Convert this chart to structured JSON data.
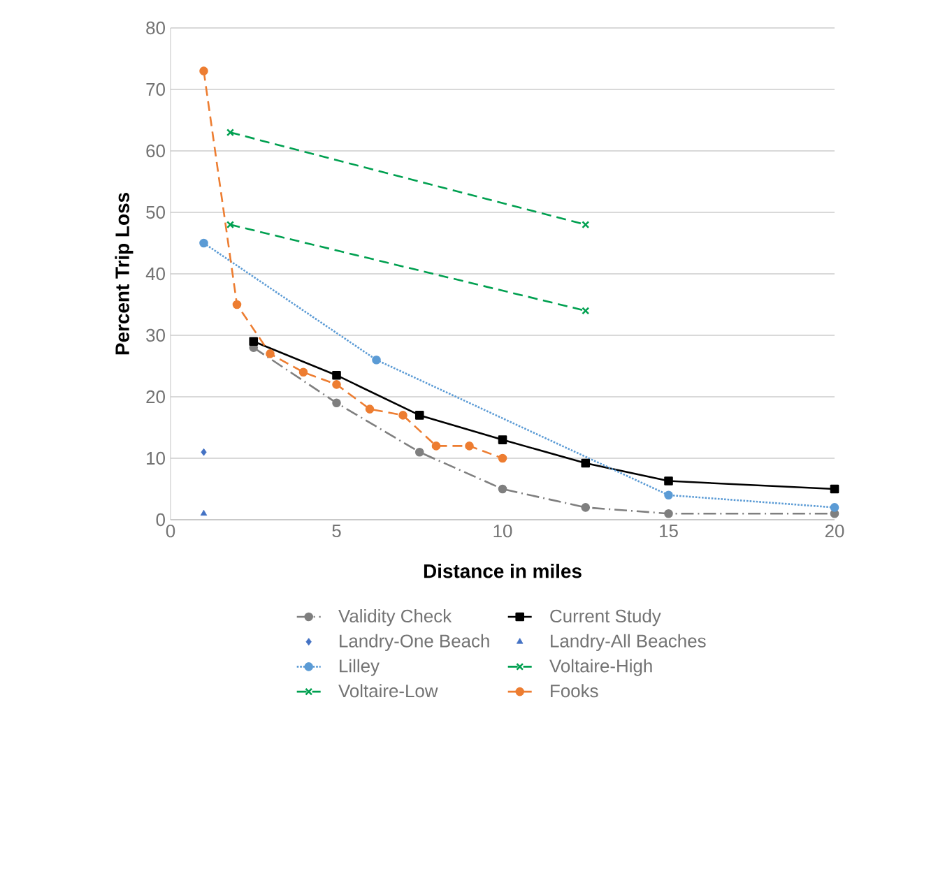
{
  "chart_data": {
    "type": "line",
    "xlabel": "Distance in miles",
    "ylabel": "Percent Trip Loss",
    "xlim": [
      0,
      20
    ],
    "ylim": [
      0,
      80
    ],
    "xticks": [
      0,
      5,
      10,
      15,
      20
    ],
    "yticks": [
      0,
      10,
      20,
      30,
      40,
      50,
      60,
      70,
      80
    ],
    "grid": "y",
    "legend": "bottom",
    "series": [
      {
        "name": "Validity Check",
        "color": "#7f7f7f",
        "marker": "circle",
        "line_style": "dashdot",
        "x": [
          2.5,
          5,
          7.5,
          10,
          12.5,
          15,
          20
        ],
        "values": [
          28,
          19,
          11,
          5,
          2,
          1,
          1
        ]
      },
      {
        "name": "Current Study",
        "color": "#000000",
        "marker": "square",
        "line_style": "solid",
        "x": [
          2.5,
          5,
          7.5,
          10,
          12.5,
          15,
          20
        ],
        "values": [
          29,
          23.5,
          17,
          13,
          9.2,
          6.3,
          5
        ]
      },
      {
        "name": "Landry-One Beach",
        "type": "scatter",
        "color": "#4472c4",
        "marker": "diamond",
        "x": [
          1
        ],
        "values": [
          11
        ]
      },
      {
        "name": "Landry-All Beaches",
        "type": "scatter",
        "color": "#4472c4",
        "marker": "triangle",
        "x": [
          1
        ],
        "values": [
          1
        ]
      },
      {
        "name": "Lilley",
        "color": "#5b9bd5",
        "marker": "circle",
        "line_style": "dotted",
        "x": [
          1,
          6.2,
          15,
          20
        ],
        "values": [
          45,
          26,
          4,
          2
        ]
      },
      {
        "name": "Voltaire-High",
        "color": "#00a050",
        "marker": "cross",
        "line_style": "dashed",
        "x": [
          1.8,
          12.5
        ],
        "values": [
          63,
          48
        ]
      },
      {
        "name": "Voltaire-Low",
        "color": "#00a050",
        "marker": "cross",
        "line_style": "dashed",
        "x": [
          1.8,
          12.5
        ],
        "values": [
          48,
          34
        ]
      },
      {
        "name": "Fooks",
        "color": "#ed7d31",
        "marker": "circle",
        "line_style": "dashed",
        "x": [
          1,
          2,
          3,
          4,
          5,
          6,
          7,
          8,
          9,
          10
        ],
        "values": [
          73,
          35,
          27,
          24,
          22,
          18,
          17,
          12,
          12,
          10
        ]
      }
    ]
  }
}
